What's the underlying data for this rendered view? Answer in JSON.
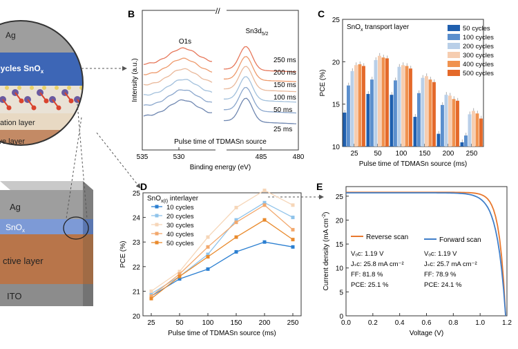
{
  "figure": {
    "colors": {
      "ag": "#9e9e9e",
      "sno_band": "#3d66b6",
      "active_layer": "#b8754a",
      "ito": "#8c8c8c",
      "orange": "#e8782e",
      "blue": "#3f7ec9",
      "xps_curves": [
        "#6e86b0",
        "#8aa6cc",
        "#a2c0dc",
        "#e9b89a",
        "#ee9a6c",
        "#e6775a"
      ]
    },
    "schematic": {
      "zoom_labels": {
        "ag": "Ag",
        "sno": "cycles SnO",
        "sno_sub": "x",
        "passivation": "ivation layer",
        "active": "tive layer"
      },
      "stack_labels": {
        "ag": "Ag",
        "sno": "SnO",
        "sno_sub": "x",
        "active": "ctive layer",
        "ito": "ITO"
      }
    }
  },
  "chart_data": [
    {
      "panel": "B",
      "type": "line",
      "title": "Pulse time of TDMASn source",
      "xlabel": "Binding energy (eV)",
      "ylabel": "Intensity (a.u.)",
      "xlim_left": [
        535,
        525
      ],
      "xlim_right": [
        490,
        480
      ],
      "xticks": [
        "535",
        "530",
        "485",
        "480"
      ],
      "break_mark": "//",
      "peak_labels": {
        "o1s": "O1s",
        "sn3d": "Sn3d",
        "sn3d_sub": "5/2"
      },
      "series": [
        {
          "name": "250 ms"
        },
        {
          "name": "200 ms"
        },
        {
          "name": "150 ms"
        },
        {
          "name": "100 ms"
        },
        {
          "name": "50 ms"
        },
        {
          "name": "25 ms"
        }
      ]
    },
    {
      "panel": "C",
      "type": "bar",
      "title": "SnO",
      "title_sub": "x",
      "title_rest": " transport layer",
      "xlabel": "Pulse time of TDMASn source (ms)",
      "ylabel": "PCE (%)",
      "ylim": [
        10,
        25
      ],
      "yticks": [
        "10",
        "15",
        "20",
        "25"
      ],
      "categories": [
        "25",
        "50",
        "100",
        "150",
        "200",
        "250"
      ],
      "series": [
        {
          "name": "50 cycles",
          "color": "#1f5fae",
          "values": [
            14.0,
            16.2,
            16.1,
            13.5,
            11.5,
            10.5
          ]
        },
        {
          "name": "100 cycles",
          "color": "#5b8fcd",
          "values": [
            17.2,
            17.9,
            17.8,
            16.3,
            14.9,
            11.3
          ]
        },
        {
          "name": "200 cycles",
          "color": "#b9cfe8",
          "values": [
            18.9,
            20.2,
            19.4,
            18.1,
            16.1,
            13.8
          ]
        },
        {
          "name": "300 cycles",
          "color": "#f6cdb0",
          "values": [
            19.6,
            20.7,
            19.6,
            18.3,
            16.0,
            14.2
          ]
        },
        {
          "name": "400 cycles",
          "color": "#f0924f",
          "values": [
            19.7,
            20.5,
            19.5,
            17.9,
            15.6,
            13.9
          ]
        },
        {
          "name": "500 cycles",
          "color": "#e4692a",
          "values": [
            19.5,
            20.4,
            19.2,
            17.6,
            15.4,
            13.3
          ]
        }
      ]
    },
    {
      "panel": "D",
      "type": "scatter",
      "title": "SnO",
      "title_sub": "x(I)",
      "title_rest": " interlayer",
      "xlabel": "Pulse time of TDMASn source (ms)",
      "ylabel": "PCE (%)",
      "ylim": [
        20,
        25
      ],
      "yticks": [
        "20",
        "21",
        "22",
        "23",
        "24",
        "25"
      ],
      "x": [
        25,
        50,
        100,
        150,
        200,
        250
      ],
      "xticks": [
        "25",
        "50",
        "100",
        "150",
        "200",
        "250"
      ],
      "series": [
        {
          "name": "10 cycles",
          "color": "#2b7fd1",
          "values": [
            20.8,
            21.5,
            21.9,
            22.6,
            23.0,
            22.8
          ]
        },
        {
          "name": "20 cycles",
          "color": "#8fc3ea",
          "values": [
            20.9,
            21.6,
            22.5,
            23.9,
            24.6,
            24.0
          ]
        },
        {
          "name": "30 cycles",
          "color": "#f6d6b8",
          "values": [
            21.0,
            21.8,
            23.2,
            24.4,
            25.1,
            24.5
          ]
        },
        {
          "name": "40 cycles",
          "color": "#f2a86d",
          "values": [
            20.8,
            21.7,
            22.8,
            23.8,
            24.5,
            23.5
          ]
        },
        {
          "name": "50 cycles",
          "color": "#e98a2c",
          "values": [
            20.7,
            21.6,
            22.4,
            23.2,
            23.9,
            23.1
          ]
        }
      ]
    },
    {
      "panel": "E",
      "type": "line",
      "xlabel": "Voltage (V)",
      "ylabel": "Current density (mA cm",
      "ylabel_sup": "-2",
      "ylabel_end": ")",
      "xlim": [
        0.0,
        1.2
      ],
      "ylim": [
        0,
        27
      ],
      "xticks": [
        "0.0",
        "0.2",
        "0.4",
        "0.6",
        "0.8",
        "1.0",
        "1.2"
      ],
      "yticks": [
        "0",
        "5",
        "10",
        "15",
        "20",
        "25"
      ],
      "series": [
        {
          "name": "Reverse scan",
          "color": "#e8782e",
          "voc": 1.19,
          "jsc": 25.8,
          "ff_pct": 81.8,
          "lines": [
            "Vₒc: 1.19 V",
            "Jₛᴄ: 25.8 mA cm⁻²",
            "FF: 81.8 %",
            "PCE: 25.1 %"
          ]
        },
        {
          "name": "Forward scan",
          "color": "#3f7ec9",
          "voc": 1.19,
          "jsc": 25.7,
          "ff_pct": 78.9,
          "lines": [
            "Vₒc: 1.19 V",
            "Jₛᴄ: 25.7 mA cm⁻²",
            "FF: 78.9 %",
            "PCE: 24.1 %"
          ]
        }
      ]
    }
  ]
}
